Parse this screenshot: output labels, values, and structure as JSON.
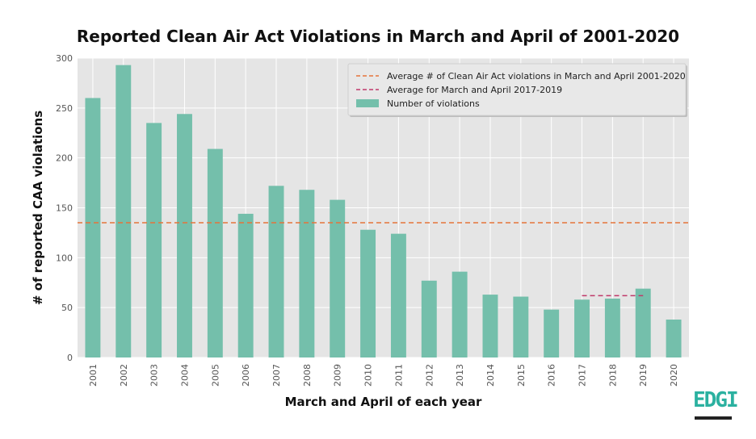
{
  "logo": {
    "text": "EDGI",
    "color": "#2bb1a0"
  },
  "chart_data": {
    "type": "bar",
    "title": "Reported Clean Air Act Violations in March and April of 2001-2020",
    "xlabel": "March and April of each year",
    "ylabel": "# of reported CAA violations",
    "categories": [
      "2001",
      "2002",
      "2003",
      "2004",
      "2005",
      "2006",
      "2007",
      "2008",
      "2009",
      "2010",
      "2011",
      "2012",
      "2013",
      "2014",
      "2015",
      "2016",
      "2017",
      "2018",
      "2019",
      "2020"
    ],
    "series": [
      {
        "name": "Number of violations",
        "color": "#74bfab",
        "values": [
          260,
          293,
          235,
          244,
          209,
          144,
          172,
          168,
          158,
          128,
          124,
          77,
          86,
          63,
          61,
          48,
          58,
          59,
          69,
          38
        ]
      }
    ],
    "reference_lines": [
      {
        "name": "Average # of Clean Air Act violations in March and April 2001-2020",
        "value": 135,
        "color": "#e5743a",
        "span": [
          "2001",
          "2020"
        ]
      },
      {
        "name": "Average for March and April 2017-2019",
        "value": 62,
        "color": "#c0396a",
        "span": [
          "2017",
          "2019"
        ]
      }
    ],
    "ylim": [
      0,
      300
    ],
    "yticks": [
      0,
      50,
      100,
      150,
      200,
      250,
      300
    ],
    "grid": true,
    "legend_position": "top-right",
    "background": "#e5e5e5"
  }
}
